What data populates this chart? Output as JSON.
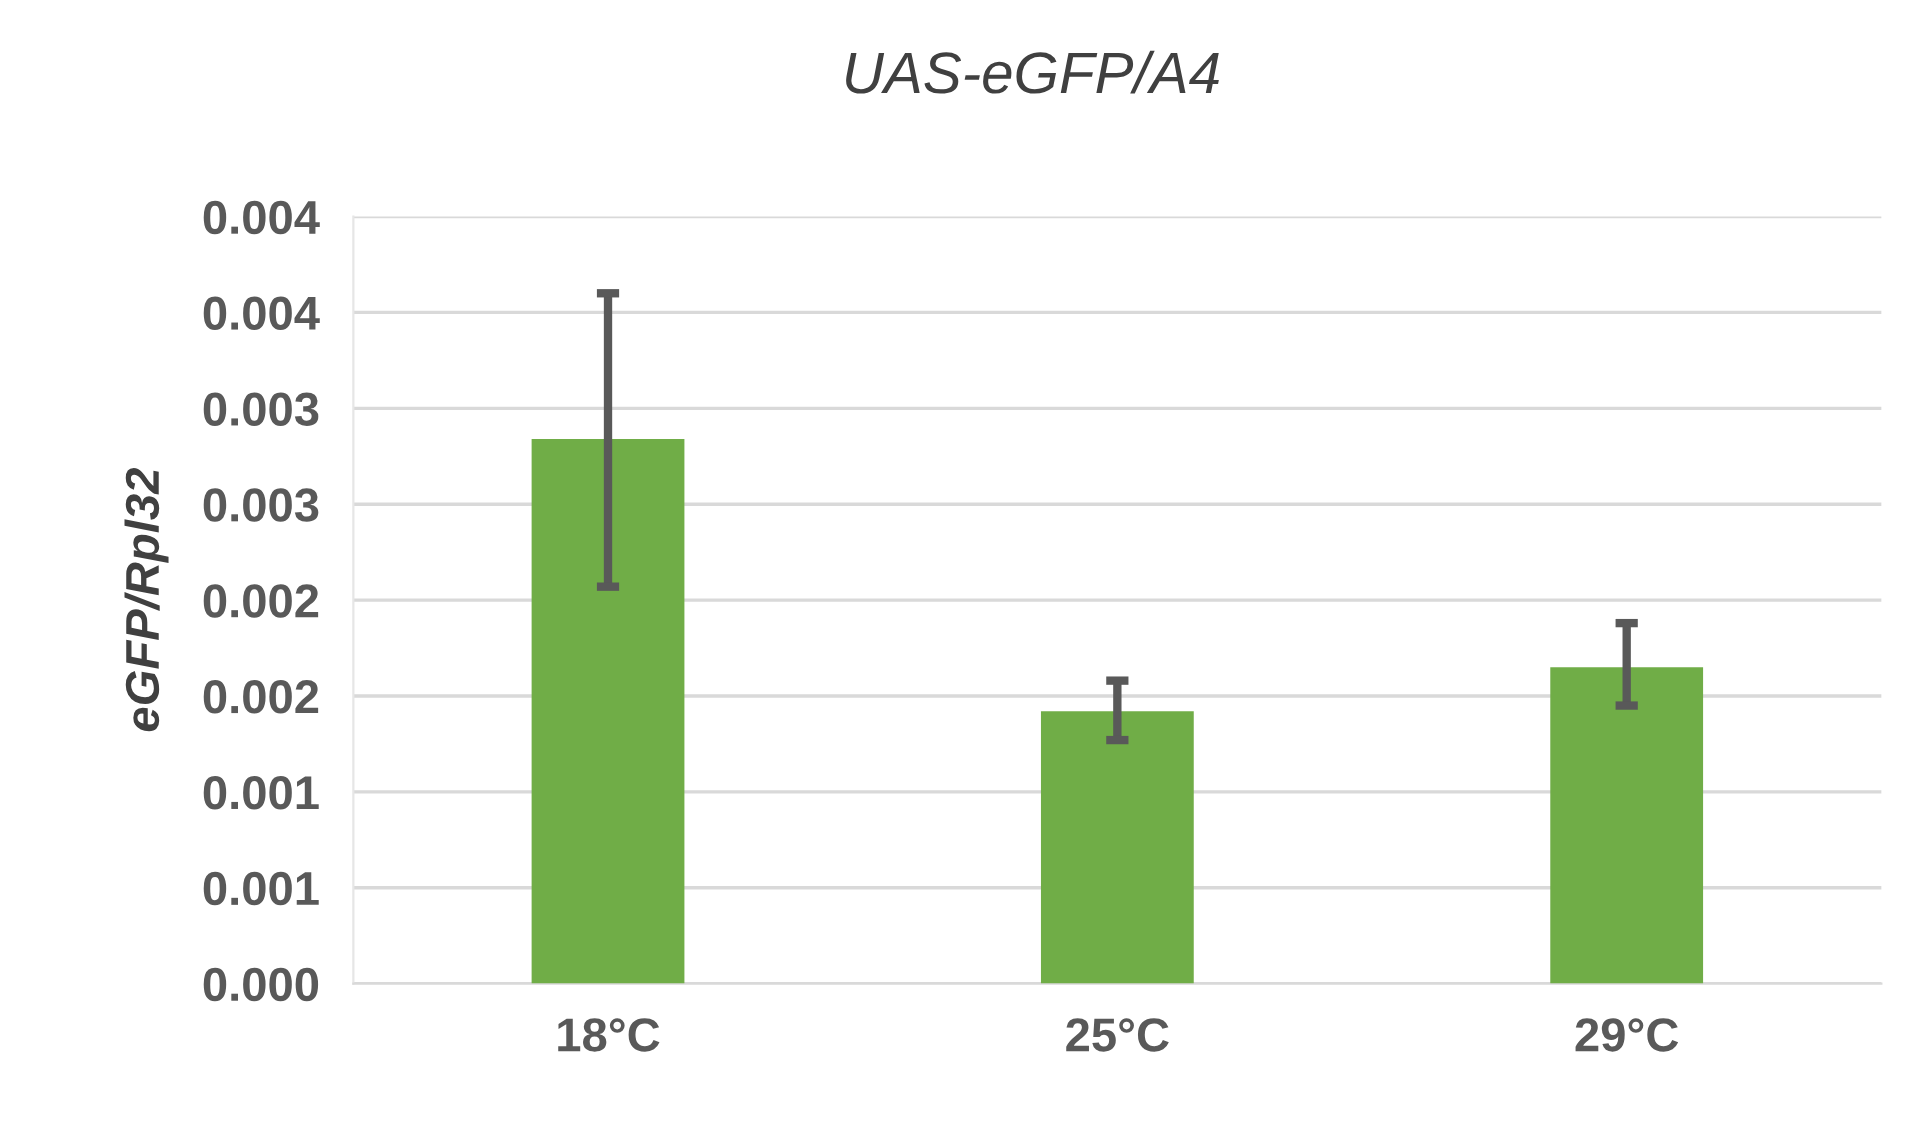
{
  "chart_data": {
    "type": "bar",
    "title": "UAS-eGFP/A4",
    "ylabel": "eGFP/Rpl32",
    "categories": [
      "18°C",
      "25°C",
      "29°C"
    ],
    "series": [
      {
        "color": "#70ad47",
        "values": [
          0.00284,
          0.00142,
          0.00165
        ],
        "errors": [
          [
            0.00207,
            0.0036
          ],
          [
            0.00127,
            0.00158
          ],
          [
            0.00145,
            0.00188
          ]
        ]
      }
    ],
    "ylim": [
      0,
      0.004
    ],
    "yticks": [
      {
        "value": 0,
        "label": "0.000"
      },
      {
        "value": 0.0005,
        "label": "0.001"
      },
      {
        "value": 0.001,
        "label": "0.001"
      },
      {
        "value": 0.0015,
        "label": "0.002"
      },
      {
        "value": 0.002,
        "label": "0.002"
      },
      {
        "value": 0.0025,
        "label": "0.003"
      },
      {
        "value": 0.003,
        "label": "0.003"
      },
      {
        "value": 0.0035,
        "label": "0.004"
      },
      {
        "value": 0.004,
        "label": "0.004"
      }
    ],
    "grid": "y"
  }
}
